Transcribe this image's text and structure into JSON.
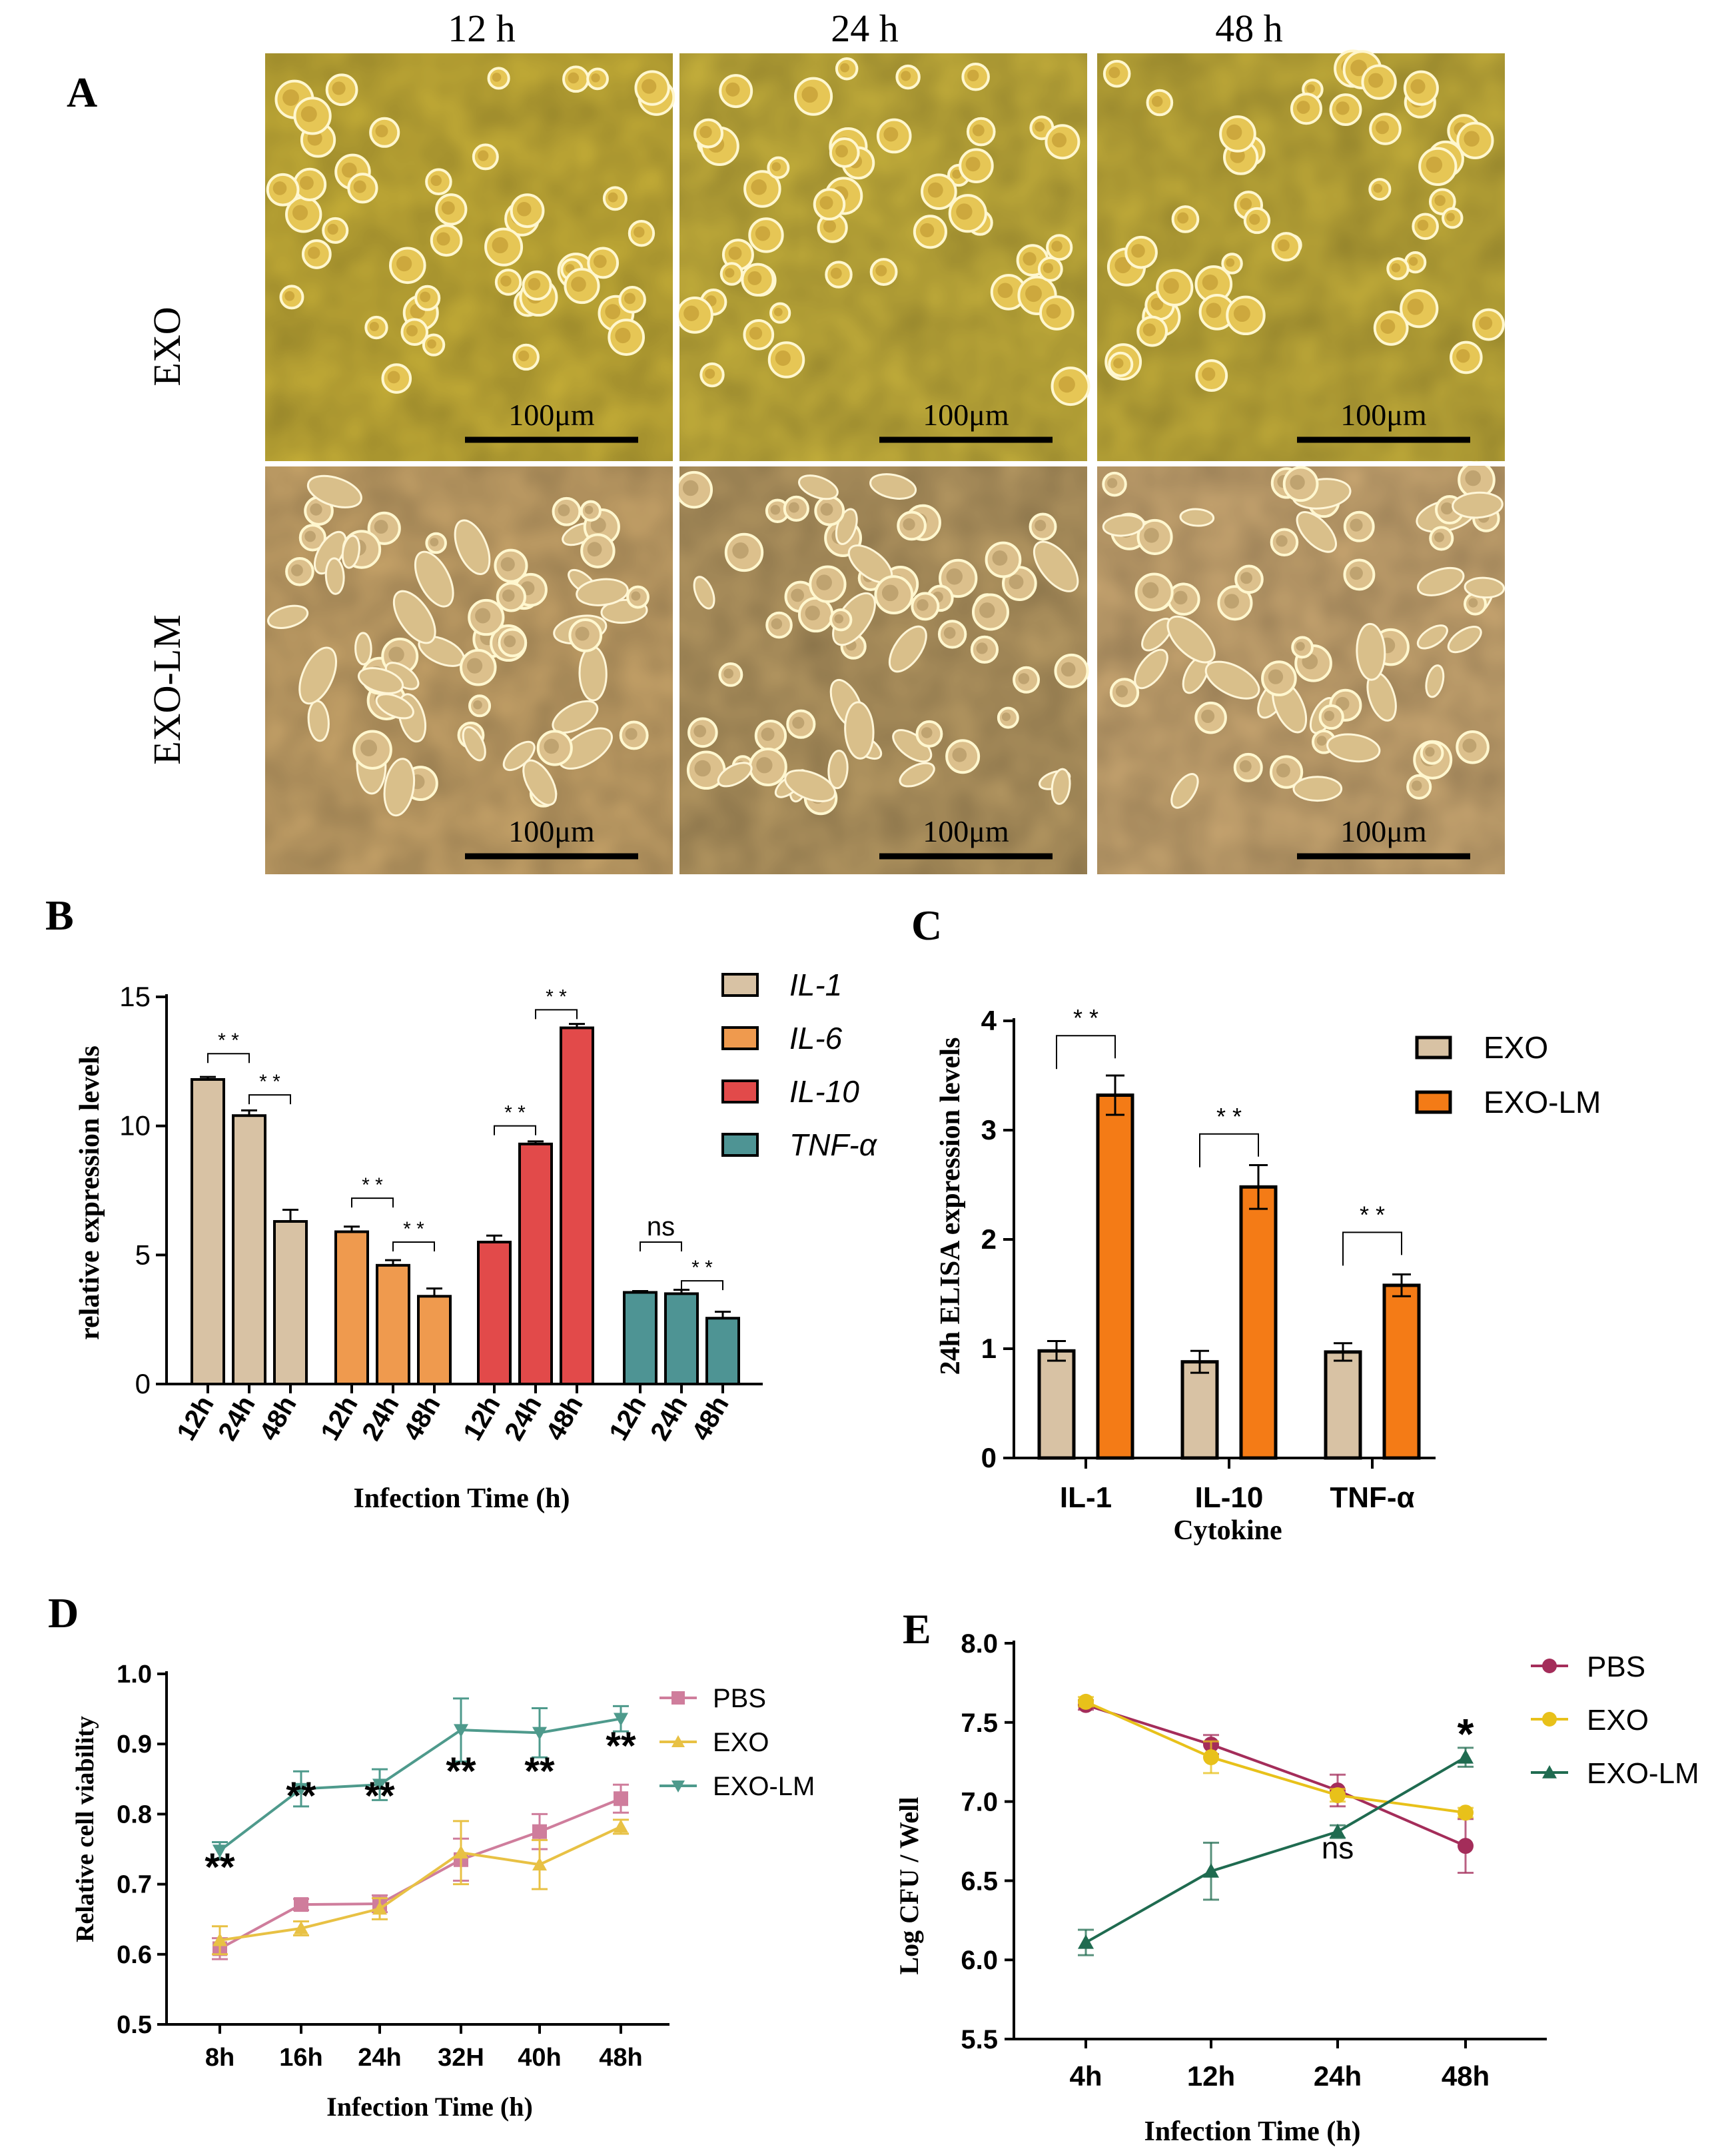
{
  "panelA": {
    "label": "A",
    "columns": [
      "12 h",
      "24 h",
      "48 h"
    ],
    "rows": [
      "EXO",
      "EXO-LM"
    ],
    "scale_bar": "100μm"
  },
  "colors": {
    "il1": "#d8c2a4",
    "il6": "#ef9a4e",
    "il10": "#e24a4a",
    "tnf": "#4e9494",
    "exo_c": "#d8c2a4",
    "exolm_c": "#f47b16",
    "pbs_d": "#cf7d9c",
    "exo_d": "#e8c144",
    "exolm_d": "#4e9a8c",
    "pbs_e": "#a42d5a",
    "exo_e": "#e8c11a",
    "exolm_e": "#1f6b50"
  },
  "chart_data": [
    {
      "panel": "B",
      "type": "bar",
      "label": "B",
      "ylabel": "relative expression levels",
      "xlabel": "Infection Time (h)",
      "ylim": [
        0,
        15
      ],
      "yticks": [
        0,
        5,
        10,
        15
      ],
      "time_labels": [
        "12h",
        "24h",
        "48h"
      ],
      "groups": [
        {
          "name": "IL-1",
          "values": [
            11.8,
            10.4,
            6.3
          ],
          "errors": [
            0.1,
            0.2,
            0.45
          ],
          "colorKey": "il1"
        },
        {
          "name": "IL-6",
          "values": [
            5.9,
            4.6,
            3.4
          ],
          "errors": [
            0.2,
            0.2,
            0.3
          ],
          "colorKey": "il6"
        },
        {
          "name": "IL-10",
          "values": [
            5.5,
            9.3,
            13.8
          ],
          "errors": [
            0.25,
            0.1,
            0.15
          ],
          "colorKey": "il10"
        },
        {
          "name": "TNF-α",
          "values": [
            3.55,
            3.5,
            2.55
          ],
          "errors": [
            0.05,
            0.15,
            0.25
          ],
          "colorKey": "tnf"
        }
      ],
      "comparisons": [
        {
          "group": 0,
          "from": 0,
          "to": 1,
          "text": "* *",
          "y": 12.8
        },
        {
          "group": 0,
          "from": 1,
          "to": 2,
          "text": "* *",
          "y": 11.2
        },
        {
          "group": 1,
          "from": 0,
          "to": 1,
          "text": "* *",
          "y": 7.2
        },
        {
          "group": 1,
          "from": 1,
          "to": 2,
          "text": "* *",
          "y": 5.5
        },
        {
          "group": 2,
          "from": 0,
          "to": 1,
          "text": "* *",
          "y": 10.0
        },
        {
          "group": 2,
          "from": 1,
          "to": 2,
          "text": "* *",
          "y": 14.5
        },
        {
          "group": 3,
          "from": 0,
          "to": 1,
          "text": "ns",
          "y": 5.5
        },
        {
          "group": 3,
          "from": 1,
          "to": 2,
          "text": "* *",
          "y": 4.0
        }
      ]
    },
    {
      "panel": "C",
      "type": "bar",
      "label": "C",
      "ylabel": "24h ELISA expression levels",
      "xlabel": "Cytokine",
      "ylim": [
        0,
        4
      ],
      "yticks": [
        0,
        1,
        2,
        3,
        4
      ],
      "categories": [
        "IL-1",
        "IL-10",
        "TNF-α"
      ],
      "series": [
        {
          "name": "EXO",
          "values": [
            0.98,
            0.88,
            0.97
          ],
          "errors": [
            0.09,
            0.1,
            0.08
          ],
          "colorKey": "exo_c"
        },
        {
          "name": "EXO-LM",
          "values": [
            3.32,
            2.48,
            1.58
          ],
          "errors": [
            0.18,
            0.2,
            0.1
          ],
          "colorKey": "exolm_c"
        }
      ],
      "comparisons": [
        {
          "category": 0,
          "text": "* *",
          "y": 3.95
        },
        {
          "category": 1,
          "text": "* *",
          "y": 3.05
        },
        {
          "category": 2,
          "text": "* *",
          "y": 2.15
        }
      ]
    },
    {
      "panel": "D",
      "type": "line",
      "label": "D",
      "ylabel": "Relative cell viability",
      "xlabel": "Infection Time (h)",
      "ylim": [
        0.5,
        1.0
      ],
      "yticks": [
        0.5,
        0.6,
        0.7,
        0.8,
        0.9,
        1.0
      ],
      "x": [
        "8h",
        "16h",
        "24h",
        "32H",
        "40h",
        "48h"
      ],
      "series": [
        {
          "name": "PBS",
          "values": [
            0.608,
            0.671,
            0.672,
            0.735,
            0.775,
            0.822
          ],
          "errors": [
            0.015,
            0.008,
            0.012,
            0.03,
            0.025,
            0.02
          ],
          "colorKey": "pbs_d",
          "marker": "square"
        },
        {
          "name": "EXO",
          "values": [
            0.62,
            0.637,
            0.665,
            0.745,
            0.728,
            0.782
          ],
          "errors": [
            0.02,
            0.01,
            0.015,
            0.045,
            0.035,
            0.01
          ],
          "colorKey": "exo_d",
          "marker": "triangle-up"
        },
        {
          "name": "EXO-LM",
          "values": [
            0.748,
            0.836,
            0.842,
            0.92,
            0.916,
            0.936
          ],
          "errors": [
            0.012,
            0.025,
            0.022,
            0.045,
            0.035,
            0.018
          ],
          "colorKey": "exolm_d",
          "marker": "triangle-down"
        }
      ],
      "significance": [
        "**",
        "**",
        "**",
        "**",
        "**",
        "**"
      ]
    },
    {
      "panel": "E",
      "type": "line",
      "label": "E",
      "ylabel": "Log  CFU / Well",
      "xlabel": "Infection Time (h)",
      "ylim": [
        5.5,
        8.0
      ],
      "yticks": [
        5.5,
        6.0,
        6.5,
        7.0,
        7.5,
        8.0
      ],
      "x": [
        "4h",
        "12h",
        "24h",
        "48h"
      ],
      "series": [
        {
          "name": "PBS",
          "values": [
            7.61,
            7.36,
            7.07,
            6.72
          ],
          "errors": [
            0.03,
            0.06,
            0.1,
            0.17
          ],
          "colorKey": "pbs_e",
          "marker": "circle"
        },
        {
          "name": "EXO",
          "values": [
            7.63,
            7.28,
            7.04,
            6.93
          ],
          "errors": [
            0.03,
            0.1,
            0.04,
            0.03
          ],
          "colorKey": "exo_e",
          "marker": "circle"
        },
        {
          "name": "EXO-LM",
          "values": [
            6.11,
            6.56,
            6.81,
            7.28
          ],
          "errors": [
            0.08,
            0.18,
            0.04,
            0.06
          ],
          "colorKey": "exolm_e",
          "marker": "triangle-up"
        }
      ],
      "annotations": [
        {
          "xIndex": 2,
          "y": 6.64,
          "text": "ns"
        },
        {
          "xIndex": 3,
          "y": 7.42,
          "text": "*"
        }
      ]
    }
  ]
}
